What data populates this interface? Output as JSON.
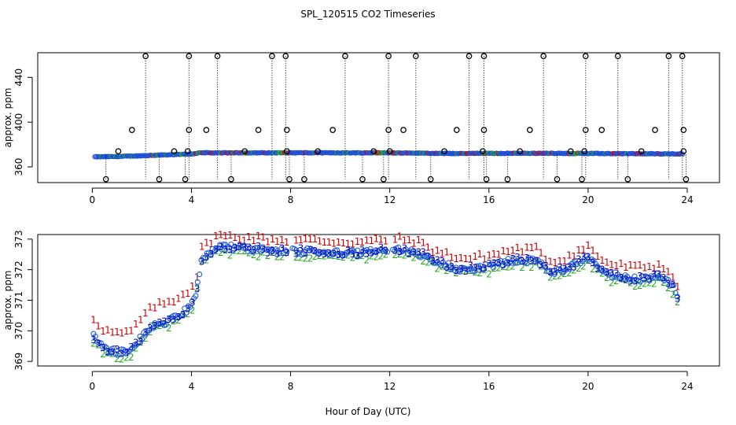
{
  "chart_data": {
    "title": "SPL_120515  CO2 Timeseries",
    "xlabel": "Hour of Day (UTC)",
    "panels": [
      {
        "type": "scatter",
        "ylabel": "approx. ppm",
        "xlim": [
          -2.2,
          25.3
        ],
        "ylim": [
          346,
          462
        ],
        "xticks": [
          "0",
          "4",
          "8",
          "12",
          "16",
          "20",
          "24"
        ],
        "xtick_values": [
          0,
          4,
          8,
          12,
          16,
          20,
          24
        ],
        "yticks": [
          "360",
          "400",
          "440"
        ],
        "ytick_values": [
          360,
          400,
          440
        ],
        "baseline_start_hour": 0.1,
        "baseline_end_hour": 23.85,
        "baseline_ppm_profile": [
          {
            "hour": 0.0,
            "ppm": 369.0
          },
          {
            "hour": 1.0,
            "ppm": 369.3
          },
          {
            "hour": 2.0,
            "ppm": 370.0
          },
          {
            "hour": 3.0,
            "ppm": 370.8
          },
          {
            "hour": 4.0,
            "ppm": 371.5
          },
          {
            "hour": 4.3,
            "ppm": 372.6
          },
          {
            "hour": 12.0,
            "ppm": 372.6
          },
          {
            "hour": 14.5,
            "ppm": 372.0
          },
          {
            "hour": 18.0,
            "ppm": 372.2
          },
          {
            "hour": 24.0,
            "ppm": 371.6
          }
        ],
        "spikes": [
          {
            "hour": 2.15,
            "high": 459,
            "low": 349
          },
          {
            "hour": 3.9,
            "high": 459,
            "low": 349
          },
          {
            "hour": 5.05,
            "high": 459,
            "low": 349
          },
          {
            "hour": 7.25,
            "high": 459,
            "low": 349
          },
          {
            "hour": 7.8,
            "high": 459,
            "low": 349
          },
          {
            "hour": 10.2,
            "high": 459,
            "low": 349
          },
          {
            "hour": 11.95,
            "high": 459,
            "low": 349
          },
          {
            "hour": 13.05,
            "high": 459,
            "low": 349
          },
          {
            "hour": 15.2,
            "high": 459,
            "low": 349
          },
          {
            "hour": 15.8,
            "high": 459,
            "low": 349
          },
          {
            "hour": 18.2,
            "high": 459,
            "low": 349
          },
          {
            "hour": 19.9,
            "high": 459,
            "low": 349
          },
          {
            "hour": 21.2,
            "high": 459,
            "low": 349
          },
          {
            "hour": 23.25,
            "high": 459,
            "low": 349
          },
          {
            "hour": 23.8,
            "high": 459,
            "low": 349
          }
        ],
        "mid_outliers": [
          {
            "hour": 1.6,
            "ppm": 393
          },
          {
            "hour": 3.9,
            "ppm": 393
          },
          {
            "hour": 4.6,
            "ppm": 393
          },
          {
            "hour": 6.7,
            "ppm": 393
          },
          {
            "hour": 7.85,
            "ppm": 393
          },
          {
            "hour": 9.7,
            "ppm": 393
          },
          {
            "hour": 11.95,
            "ppm": 393
          },
          {
            "hour": 12.55,
            "ppm": 393
          },
          {
            "hour": 14.7,
            "ppm": 393
          },
          {
            "hour": 15.8,
            "ppm": 393
          },
          {
            "hour": 17.65,
            "ppm": 393
          },
          {
            "hour": 19.9,
            "ppm": 393
          },
          {
            "hour": 20.55,
            "ppm": 393
          },
          {
            "hour": 22.7,
            "ppm": 393
          },
          {
            "hour": 23.85,
            "ppm": 393
          }
        ],
        "low_outliers": [
          {
            "hour": 0.55,
            "ppm": 349
          },
          {
            "hour": 2.7,
            "ppm": 349
          },
          {
            "hour": 3.75,
            "ppm": 349
          },
          {
            "hour": 5.6,
            "ppm": 349
          },
          {
            "hour": 7.95,
            "ppm": 349
          },
          {
            "hour": 8.55,
            "ppm": 349
          },
          {
            "hour": 10.9,
            "ppm": 349
          },
          {
            "hour": 11.75,
            "ppm": 349
          },
          {
            "hour": 13.65,
            "ppm": 349
          },
          {
            "hour": 15.9,
            "ppm": 349
          },
          {
            "hour": 16.75,
            "ppm": 349
          },
          {
            "hour": 18.75,
            "ppm": 349
          },
          {
            "hour": 19.75,
            "ppm": 349
          },
          {
            "hour": 21.6,
            "ppm": 349
          },
          {
            "hour": 23.95,
            "ppm": 349
          }
        ],
        "baseline_markers": [
          {
            "hour": 1.05,
            "ppm": 374
          },
          {
            "hour": 3.3,
            "ppm": 374
          },
          {
            "hour": 3.85,
            "ppm": 374
          },
          {
            "hour": 6.15,
            "ppm": 374
          },
          {
            "hour": 7.85,
            "ppm": 374
          },
          {
            "hour": 9.1,
            "ppm": 374
          },
          {
            "hour": 11.35,
            "ppm": 374
          },
          {
            "hour": 12.0,
            "ppm": 374
          },
          {
            "hour": 14.2,
            "ppm": 374
          },
          {
            "hour": 15.75,
            "ppm": 374
          },
          {
            "hour": 17.25,
            "ppm": 374
          },
          {
            "hour": 19.3,
            "ppm": 374
          },
          {
            "hour": 19.85,
            "ppm": 374
          },
          {
            "hour": 22.15,
            "ppm": 374
          },
          {
            "hour": 23.85,
            "ppm": 374
          }
        ]
      },
      {
        "type": "scatter",
        "ylabel": "approx. ppm",
        "xlim": [
          -2.2,
          25.3
        ],
        "ylim": [
          368.85,
          373.15
        ],
        "xticks": [
          "0",
          "4",
          "8",
          "12",
          "16",
          "20",
          "24"
        ],
        "xtick_values": [
          0,
          4,
          8,
          12,
          16,
          20,
          24
        ],
        "yticks": [
          "369",
          "370",
          "371",
          "372",
          "373"
        ],
        "ytick_values": [
          369,
          370,
          371,
          372,
          373
        ],
        "series": [
          {
            "name": "1",
            "color": "#cc0000",
            "offset": 0.35,
            "glyph": "1"
          },
          {
            "name": "2",
            "color": "#22aa22",
            "offset": -0.15,
            "glyph": "2"
          },
          {
            "name": "3",
            "color": "#0000cc",
            "offset": 0.0,
            "glyph": "3"
          },
          {
            "name": "circles",
            "color": "#1f5fd6",
            "offset": 0.0,
            "glyph": "o"
          }
        ],
        "profile": [
          {
            "hour": 0.05,
            "ppm": 369.8
          },
          {
            "hour": 0.5,
            "ppm": 369.4
          },
          {
            "hour": 1.0,
            "ppm": 369.3
          },
          {
            "hour": 1.5,
            "ppm": 369.3
          },
          {
            "hour": 2.0,
            "ppm": 369.8
          },
          {
            "hour": 2.5,
            "ppm": 370.2
          },
          {
            "hour": 3.0,
            "ppm": 370.3
          },
          {
            "hour": 3.5,
            "ppm": 370.5
          },
          {
            "hour": 4.0,
            "ppm": 370.8
          },
          {
            "hour": 4.2,
            "ppm": 371.3
          },
          {
            "hour": 4.4,
            "ppm": 372.3
          },
          {
            "hour": 5.0,
            "ppm": 372.75
          },
          {
            "hour": 6.0,
            "ppm": 372.7
          },
          {
            "hour": 7.0,
            "ppm": 372.65
          },
          {
            "hour": 8.0,
            "ppm": 372.6
          },
          {
            "hour": 9.0,
            "ppm": 372.6
          },
          {
            "hour": 10.0,
            "ppm": 372.55
          },
          {
            "hour": 11.0,
            "ppm": 372.55
          },
          {
            "hour": 12.0,
            "ppm": 372.65
          },
          {
            "hour": 13.0,
            "ppm": 372.6
          },
          {
            "hour": 14.0,
            "ppm": 372.2
          },
          {
            "hour": 15.0,
            "ppm": 372.0
          },
          {
            "hour": 16.0,
            "ppm": 372.1
          },
          {
            "hour": 17.0,
            "ppm": 372.3
          },
          {
            "hour": 18.0,
            "ppm": 372.3
          },
          {
            "hour": 18.5,
            "ppm": 371.9
          },
          {
            "hour": 19.0,
            "ppm": 372.0
          },
          {
            "hour": 19.5,
            "ppm": 372.2
          },
          {
            "hour": 20.0,
            "ppm": 372.4
          },
          {
            "hour": 20.5,
            "ppm": 372.0
          },
          {
            "hour": 21.0,
            "ppm": 371.8
          },
          {
            "hour": 22.0,
            "ppm": 371.7
          },
          {
            "hour": 23.0,
            "ppm": 371.8
          },
          {
            "hour": 23.45,
            "ppm": 371.4
          },
          {
            "hour": 23.65,
            "ppm": 370.9
          }
        ],
        "gap_hours": [
          [
            7.9,
            8.05
          ],
          [
            11.9,
            12.05
          ],
          [
            15.9,
            16.0
          ]
        ]
      }
    ]
  }
}
